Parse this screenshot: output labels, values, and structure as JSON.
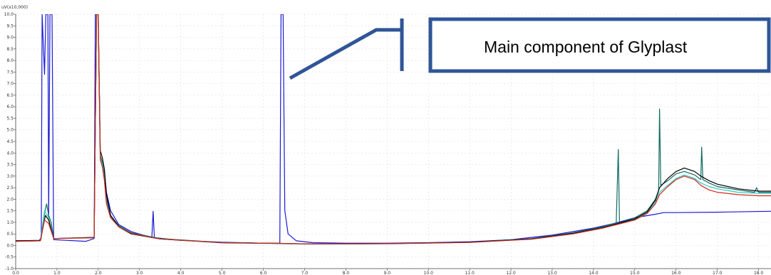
{
  "colors": {
    "black": "#000000",
    "red": "#d42a1e",
    "cyan": "#2ec9c3",
    "teal": "#0f6b62",
    "blue": "#1a1ad4",
    "callout": "#2f5597",
    "grid": "#d9d9d9"
  },
  "chart_data": {
    "type": "line",
    "yunit": "uV(x10,000)",
    "xlim": [
      0.0,
      18.3
    ],
    "ylim": [
      -1.0,
      10.0
    ],
    "yticks": [
      "-1.0",
      "-0.5",
      "0.0",
      "0.5",
      "1.0",
      "1.5",
      "2.0",
      "2.5",
      "3.0",
      "3.5",
      "4.0",
      "4.5",
      "5.0",
      "5.5",
      "6.0",
      "6.5",
      "7.0",
      "7.5",
      "8.0",
      "8.5",
      "9.0",
      "9.5",
      "10.0"
    ],
    "xticks": [
      "0.0",
      "1.0",
      "2.0",
      "3.0",
      "4.0",
      "5.0",
      "6.0",
      "7.0",
      "8.0",
      "9.0",
      "10.0",
      "11.0",
      "12.0",
      "13.0",
      "14.0",
      "15.0",
      "16.0",
      "17.0",
      "18.0"
    ],
    "annotation": "Main component of Glyplast",
    "series": [
      {
        "color_key": "blue",
        "points": [
          [
            0,
            0.18
          ],
          [
            0.55,
            0.2
          ],
          [
            0.62,
            0.3
          ],
          [
            0.64,
            10
          ],
          [
            0.7,
            7.4
          ],
          [
            0.73,
            10
          ],
          [
            0.78,
            10
          ],
          [
            0.8,
            1.2
          ],
          [
            0.83,
            10
          ],
          [
            0.88,
            10
          ],
          [
            0.92,
            0.25
          ],
          [
            1.7,
            0.18
          ],
          [
            1.9,
            0.3
          ],
          [
            1.93,
            10
          ],
          [
            2.0,
            10
          ],
          [
            2.05,
            3.8
          ],
          [
            2.1,
            3.4
          ],
          [
            2.15,
            3.2
          ],
          [
            2.2,
            2.3
          ],
          [
            2.3,
            1.5
          ],
          [
            2.5,
            0.9
          ],
          [
            2.8,
            0.6
          ],
          [
            3.3,
            0.34
          ],
          [
            3.33,
            1.48
          ],
          [
            3.36,
            0.34
          ],
          [
            4.0,
            0.22
          ],
          [
            5.0,
            0.14
          ],
          [
            6.0,
            0.1
          ],
          [
            6.4,
            0.09
          ],
          [
            6.43,
            10
          ],
          [
            6.48,
            10
          ],
          [
            6.52,
            1.5
          ],
          [
            6.6,
            0.5
          ],
          [
            6.8,
            0.2
          ],
          [
            7.2,
            0.12
          ],
          [
            8.0,
            0.1
          ],
          [
            9.0,
            0.1
          ],
          [
            10.0,
            0.12
          ],
          [
            11.0,
            0.16
          ],
          [
            12.0,
            0.25
          ],
          [
            13.0,
            0.45
          ],
          [
            14.0,
            0.75
          ],
          [
            14.5,
            0.95
          ],
          [
            15.0,
            1.2
          ],
          [
            15.5,
            1.35
          ],
          [
            15.7,
            1.42
          ],
          [
            16.0,
            1.42
          ],
          [
            17.0,
            1.44
          ],
          [
            18.3,
            1.48
          ]
        ]
      },
      {
        "color_key": "teal",
        "points": [
          [
            0,
            0.2
          ],
          [
            0.6,
            0.22
          ],
          [
            0.7,
            1.4
          ],
          [
            0.75,
            1.8
          ],
          [
            0.8,
            1.3
          ],
          [
            0.86,
            1.0
          ],
          [
            0.92,
            0.3
          ],
          [
            1.9,
            0.35
          ],
          [
            1.96,
            10
          ],
          [
            2.0,
            10
          ],
          [
            2.05,
            3.9
          ],
          [
            2.1,
            3.6
          ],
          [
            2.15,
            3.0
          ],
          [
            2.2,
            2.0
          ],
          [
            2.3,
            1.3
          ],
          [
            2.5,
            0.85
          ],
          [
            2.8,
            0.55
          ],
          [
            3.5,
            0.3
          ],
          [
            5.0,
            0.12
          ],
          [
            6.4,
            0.09
          ],
          [
            7.0,
            0.07
          ],
          [
            9.0,
            0.08
          ],
          [
            11.0,
            0.14
          ],
          [
            12.5,
            0.3
          ],
          [
            13.5,
            0.55
          ],
          [
            14.2,
            0.8
          ],
          [
            14.55,
            0.98
          ],
          [
            14.6,
            4.15
          ],
          [
            14.63,
            0.98
          ],
          [
            15.0,
            1.2
          ],
          [
            15.3,
            1.5
          ],
          [
            15.5,
            2.0
          ],
          [
            15.58,
            2.4
          ],
          [
            15.6,
            5.9
          ],
          [
            15.63,
            2.6
          ],
          [
            15.8,
            2.8
          ],
          [
            16.0,
            3.1
          ],
          [
            16.2,
            3.2
          ],
          [
            16.45,
            3.05
          ],
          [
            16.6,
            2.85
          ],
          [
            16.62,
            4.25
          ],
          [
            16.65,
            2.85
          ],
          [
            16.8,
            2.7
          ],
          [
            17.0,
            2.55
          ],
          [
            17.5,
            2.4
          ],
          [
            17.9,
            2.3
          ],
          [
            17.95,
            2.5
          ],
          [
            18.0,
            2.3
          ],
          [
            18.3,
            2.3
          ]
        ]
      },
      {
        "color_key": "cyan",
        "points": [
          [
            0,
            0.2
          ],
          [
            0.6,
            0.22
          ],
          [
            0.7,
            1.5
          ],
          [
            0.8,
            1.2
          ],
          [
            0.92,
            0.3
          ],
          [
            1.9,
            0.35
          ],
          [
            1.96,
            10
          ],
          [
            2.0,
            10
          ],
          [
            2.05,
            3.8
          ],
          [
            2.1,
            3.5
          ],
          [
            2.15,
            2.9
          ],
          [
            2.2,
            1.9
          ],
          [
            2.3,
            1.25
          ],
          [
            2.5,
            0.8
          ],
          [
            2.8,
            0.5
          ],
          [
            3.5,
            0.28
          ],
          [
            5.0,
            0.11
          ],
          [
            6.4,
            0.08
          ],
          [
            7.0,
            0.06
          ],
          [
            9.0,
            0.07
          ],
          [
            11.0,
            0.13
          ],
          [
            12.5,
            0.28
          ],
          [
            13.5,
            0.52
          ],
          [
            14.2,
            0.76
          ],
          [
            15.0,
            1.12
          ],
          [
            15.3,
            1.4
          ],
          [
            15.5,
            1.85
          ],
          [
            15.6,
            2.3
          ],
          [
            15.8,
            2.6
          ],
          [
            16.0,
            2.9
          ],
          [
            16.2,
            3.05
          ],
          [
            16.45,
            2.9
          ],
          [
            16.6,
            2.7
          ],
          [
            16.8,
            2.55
          ],
          [
            17.0,
            2.45
          ],
          [
            17.5,
            2.3
          ],
          [
            18.0,
            2.25
          ],
          [
            18.3,
            2.25
          ]
        ]
      },
      {
        "color_key": "black",
        "points": [
          [
            0,
            0.2
          ],
          [
            0.6,
            0.22
          ],
          [
            0.72,
            1.3
          ],
          [
            0.8,
            1.1
          ],
          [
            0.92,
            0.3
          ],
          [
            1.9,
            0.35
          ],
          [
            1.96,
            10
          ],
          [
            2.0,
            10
          ],
          [
            2.05,
            4.1
          ],
          [
            2.1,
            3.8
          ],
          [
            2.15,
            3.3
          ],
          [
            2.2,
            2.2
          ],
          [
            2.3,
            1.3
          ],
          [
            2.5,
            0.8
          ],
          [
            2.8,
            0.5
          ],
          [
            3.5,
            0.28
          ],
          [
            5.0,
            0.12
          ],
          [
            6.4,
            0.09
          ],
          [
            7.0,
            0.07
          ],
          [
            9.0,
            0.08
          ],
          [
            11.0,
            0.14
          ],
          [
            12.5,
            0.28
          ],
          [
            13.5,
            0.52
          ],
          [
            14.2,
            0.76
          ],
          [
            15.0,
            1.15
          ],
          [
            15.3,
            1.45
          ],
          [
            15.5,
            1.95
          ],
          [
            15.6,
            2.5
          ],
          [
            15.8,
            2.9
          ],
          [
            16.0,
            3.2
          ],
          [
            16.2,
            3.35
          ],
          [
            16.45,
            3.2
          ],
          [
            16.6,
            3.0
          ],
          [
            16.8,
            2.8
          ],
          [
            17.0,
            2.65
          ],
          [
            17.5,
            2.45
          ],
          [
            18.0,
            2.35
          ],
          [
            18.3,
            2.35
          ]
        ]
      },
      {
        "color_key": "red",
        "points": [
          [
            0,
            0.18
          ],
          [
            0.6,
            0.2
          ],
          [
            0.7,
            1.1
          ],
          [
            0.8,
            0.95
          ],
          [
            0.92,
            0.3
          ],
          [
            1.9,
            0.33
          ],
          [
            1.96,
            10
          ],
          [
            2.0,
            10
          ],
          [
            2.05,
            3.7
          ],
          [
            2.1,
            3.4
          ],
          [
            2.15,
            2.8
          ],
          [
            2.2,
            1.8
          ],
          [
            2.3,
            1.2
          ],
          [
            2.5,
            0.8
          ],
          [
            2.8,
            0.52
          ],
          [
            3.5,
            0.28
          ],
          [
            5.0,
            0.12
          ],
          [
            6.4,
            0.09
          ],
          [
            7.0,
            0.07
          ],
          [
            9.0,
            0.08
          ],
          [
            11.0,
            0.13
          ],
          [
            12.5,
            0.27
          ],
          [
            13.5,
            0.5
          ],
          [
            14.2,
            0.74
          ],
          [
            15.0,
            1.1
          ],
          [
            15.3,
            1.38
          ],
          [
            15.5,
            1.8
          ],
          [
            15.6,
            2.2
          ],
          [
            15.8,
            2.55
          ],
          [
            16.0,
            2.85
          ],
          [
            16.2,
            3.0
          ],
          [
            16.45,
            2.85
          ],
          [
            16.6,
            2.6
          ],
          [
            16.8,
            2.4
          ],
          [
            17.0,
            2.3
          ],
          [
            17.5,
            2.2
          ],
          [
            18.0,
            2.15
          ],
          [
            18.3,
            2.15
          ]
        ]
      }
    ]
  }
}
